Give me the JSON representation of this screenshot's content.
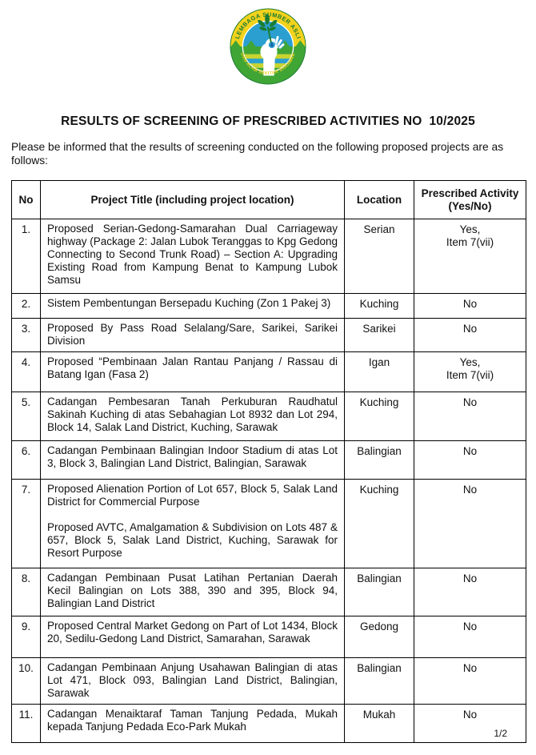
{
  "logo": {
    "top_text": "LEMBAGA SUMBER ASLI",
    "bottom_text": "DAN ALAM SEKITAR SARAWAK",
    "colors": {
      "yellow": "#f2d21c",
      "green": "#3fa535",
      "dark_green": "#1b7c33",
      "blue": "#2b9fd0",
      "drop_blue": "#1565a8",
      "stripe_yellow": "#c8d430",
      "white": "#ffffff"
    }
  },
  "title": "RESULTS OF SCREENING OF PRESCRIBED ACTIVITIES NO  10/2025",
  "intro": "Please be informed that the results of screening conducted on the following proposed projects are as follows:",
  "table": {
    "headers": {
      "no": "No",
      "project_title": "Project Title (including project location)",
      "location": "Location",
      "prescribed": "Prescribed Activity (Yes/No)"
    },
    "rows": [
      {
        "no": "1.",
        "title_paragraphs": [
          "Proposed Serian-Gedong-Samarahan Dual Carriageway highway (Package 2: Jalan Lubok Teranggas to Kpg Gedong Connecting to Second Trunk Road) – Section A: Upgrading Existing Road from Kampung Benat to Kampung Lubok Samsu"
        ],
        "location": "Serian",
        "prescribed_lines": [
          "Yes,",
          "Item 7(vii)"
        ]
      },
      {
        "no": "2.",
        "title_paragraphs": [
          "Sistem Pembentungan Bersepadu Kuching (Zon 1 Pakej 3)"
        ],
        "location": "Kuching",
        "prescribed_lines": [
          "No"
        ]
      },
      {
        "no": "3.",
        "title_paragraphs": [
          "Proposed By Pass Road Selalang/Sare, Sarikei, Sarikei Division"
        ],
        "location": "Sarikei",
        "prescribed_lines": [
          "No"
        ]
      },
      {
        "no": "4.",
        "title_paragraphs": [
          "Proposed “Pembinaan Jalan Rantau Panjang / Rassau di Batang Igan (Fasa 2)"
        ],
        "location": "Igan",
        "prescribed_lines": [
          "Yes,",
          "Item 7(vii)"
        ]
      },
      {
        "no": "5.",
        "title_paragraphs": [
          "Cadangan Pembesaran Tanah Perkuburan Raudhatul Sakinah Kuching di atas Sebahagian Lot 8932 dan Lot 294, Block 14, Salak Land District, Kuching, Sarawak"
        ],
        "location": "Kuching",
        "prescribed_lines": [
          "No"
        ]
      },
      {
        "no": "6.",
        "title_paragraphs": [
          "Cadangan Pembinaan Balingian Indoor Stadium di atas Lot 3, Block 3, Balingian Land District, Balingian, Sarawak"
        ],
        "location": "Balingian",
        "prescribed_lines": [
          "No"
        ]
      },
      {
        "no": "7.",
        "title_paragraphs": [
          "Proposed Alienation Portion of Lot 657, Block 5, Salak Land District for Commercial Purpose",
          "Proposed AVTC, Amalgamation & Subdivision on Lots 487 & 657, Block 5, Salak Land District, Kuching, Sarawak for Resort Purpose"
        ],
        "location": "Kuching",
        "prescribed_lines": [
          "No"
        ]
      },
      {
        "no": "8.",
        "title_paragraphs": [
          "Cadangan Pembinaan Pusat Latihan Pertanian Daerah Kecil Balingian on Lots 388, 390 and 395, Block 94, Balingian Land District"
        ],
        "location": "Balingian",
        "prescribed_lines": [
          "No"
        ]
      },
      {
        "no": "9.",
        "title_paragraphs": [
          "Proposed Central Market Gedong on Part of Lot 1434, Block 20, Sedilu-Gedong Land District, Samarahan, Sarawak"
        ],
        "location": "Gedong",
        "prescribed_lines": [
          "No"
        ]
      },
      {
        "no": "10.",
        "title_paragraphs": [
          "Cadangan Pembinaan Anjung Usahawan Balingian di atas Lot 471, Block 093, Balingian Land District, Balingian, Sarawak"
        ],
        "location": "Balingian",
        "prescribed_lines": [
          "No"
        ]
      },
      {
        "no": "11.",
        "title_paragraphs": [
          "Cadangan Menaiktaraf Taman Tanjung Pedada, Mukah kepada Tanjung Pedada Eco-Park Mukah"
        ],
        "location": "Mukah",
        "prescribed_lines": [
          "No"
        ]
      }
    ]
  },
  "footer": {
    "page_number": "1/2"
  }
}
